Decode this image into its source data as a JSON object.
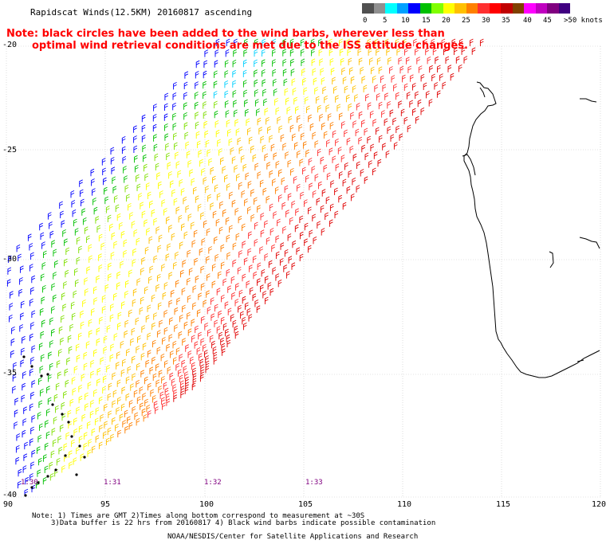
{
  "title": "Rapidscat Winds(12.5KM) 20160817 ascending",
  "notes": [
    "Note: black circles have been added to the wind barbs, wherever less than",
    "optimal wind retrieval conditions are met due to the ISS attitude changes."
  ],
  "legend": {
    "colors": [
      "#505050",
      "#909090",
      "#00ffff",
      "#00a0ff",
      "#0000ff",
      "#00c000",
      "#80ff00",
      "#ffff00",
      "#ffc000",
      "#ff8000",
      "#ff3030",
      "#ff0000",
      "#c00000",
      "#804000",
      "#ff00ff",
      "#c000c0",
      "#800080",
      "#400080"
    ],
    "labels": [
      {
        "text": "0"
      },
      {
        "text": "5"
      },
      {
        "text": "10"
      },
      {
        "text": "15"
      },
      {
        "text": "20"
      },
      {
        "text": "25"
      },
      {
        "text": "30"
      },
      {
        "text": "35"
      },
      {
        "text": "40"
      },
      {
        "text": "45"
      },
      {
        "text": ">50 knots"
      }
    ]
  },
  "axes": {
    "lon_labels": [
      "90",
      "95",
      "100",
      "105",
      "110",
      "115",
      "120"
    ],
    "lat_labels": [
      "-20",
      "-25",
      "-30",
      "-35",
      "-40"
    ]
  },
  "time_labels": [
    "1:30",
    "1:31",
    "1:32",
    "1:33"
  ],
  "footer": [
    "Note: 1) Times are GMT 2)Times along bottom correspond to measurement at ~30S",
    "3)Data buffer is 22 hrs from 20160817 4) Black wind barbs indicate possible contamination",
    "NOAA/NESDIS/Center for Satellite Applications and Research"
  ]
}
